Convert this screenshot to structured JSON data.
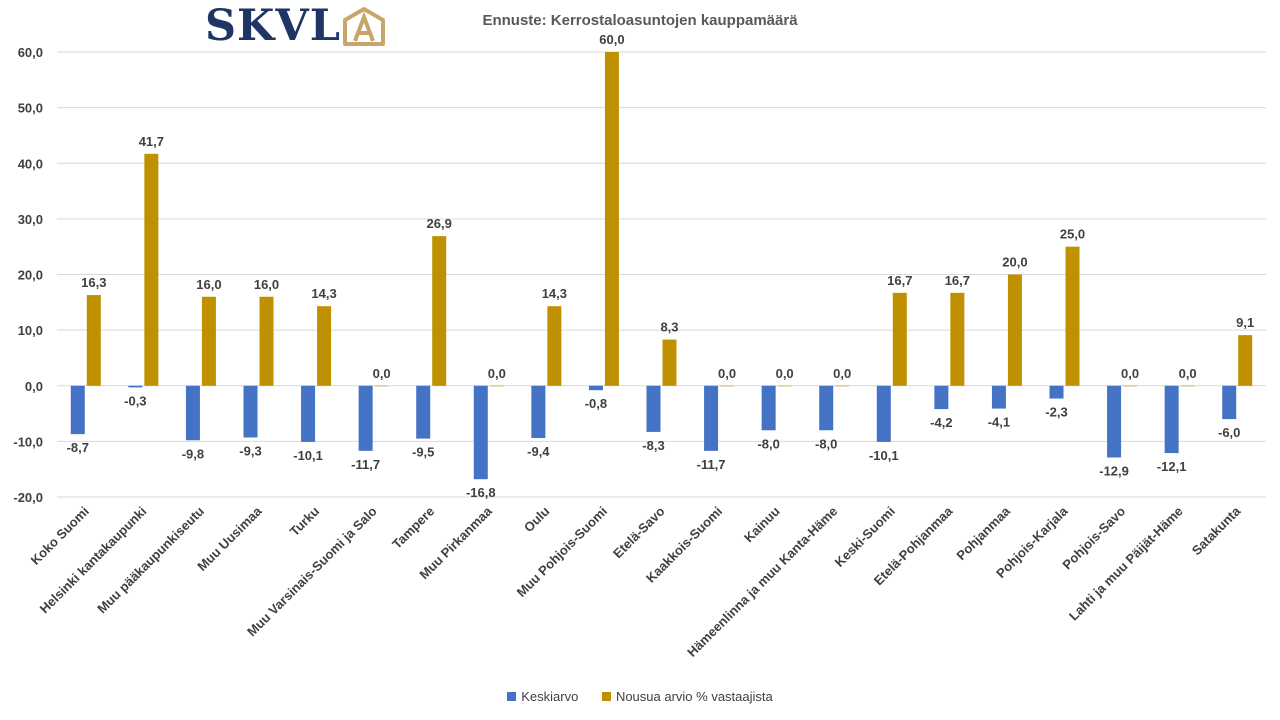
{
  "logo": {
    "text": "SKVL",
    "badge_letter": "A"
  },
  "colors": {
    "series1": "#4472c4",
    "series2": "#bf9000",
    "grid": "#d9d9d9",
    "text": "#404040",
    "logo": "#1f3566",
    "logo_accent": "#c9a46b"
  },
  "chart_data": {
    "type": "bar",
    "title": "Ennuste: Kerrostaloasuntojen kauppamäärä",
    "xlabel": "",
    "ylabel": "",
    "ylim": [
      -20,
      60
    ],
    "yticks": [
      "-20,0",
      "-10,0",
      "0,0",
      "10,0",
      "20,0",
      "30,0",
      "40,0",
      "50,0",
      "60,0"
    ],
    "grid": true,
    "legend_position": "bottom",
    "categories": [
      "Koko Suomi",
      "Helsinki kantakaupunki",
      "Muu pääkaupunkiseutu",
      "Muu Uusimaa",
      "Turku",
      "Muu Varsinais-Suomi ja Salo",
      "Tampere",
      "Muu Pirkanmaa",
      "Oulu",
      "Muu Pohjois-Suomi",
      "Etelä-Savo",
      "Kaakkois-Suomi",
      "Kainuu",
      "Hämeenlinna ja muu Kanta-Häme",
      "Keski-Suomi",
      "Etelä-Pohjanmaa",
      "Pohjanmaa",
      "Pohjois-Karjala",
      "Pohjois-Savo",
      "Lahti ja muu Päijät-Häme",
      "Satakunta"
    ],
    "series": [
      {
        "name": "Keskiarvo",
        "values": [
          -8.7,
          -0.3,
          -9.8,
          -9.3,
          -10.1,
          -11.7,
          -9.5,
          -16.8,
          -9.4,
          -0.8,
          -8.3,
          -11.7,
          -8.0,
          -8.0,
          -10.1,
          -4.2,
          -4.1,
          -2.3,
          -12.9,
          -12.1,
          -6.0
        ],
        "labels": [
          "-8,7",
          "-0,3",
          "-9,8",
          "-9,3",
          "-10,1",
          "-11,7",
          "-9,5",
          "-16,8",
          "-9,4",
          "-0,8",
          "-8,3",
          "-11,7",
          "-8,0",
          "-8,0",
          "-10,1",
          "-4,2",
          "-4,1",
          "-2,3",
          "-12,9",
          "-12,1",
          "-6,0"
        ]
      },
      {
        "name": "Nousua arvio % vastaajista",
        "values": [
          16.3,
          41.7,
          16.0,
          16.0,
          14.3,
          0.0,
          26.9,
          0.0,
          14.3,
          60.0,
          8.3,
          0.0,
          0.0,
          0.0,
          16.7,
          16.7,
          20.0,
          25.0,
          0.0,
          0.0,
          9.1
        ],
        "labels": [
          "16,3",
          "41,7",
          "16,0",
          "16,0",
          "14,3",
          "0,0",
          "26,9",
          "0,0",
          "14,3",
          "60,0",
          "8,3",
          "0,0",
          "0,0",
          "0,0",
          "16,7",
          "16,7",
          "20,0",
          "25,0",
          "0,0",
          "0,0",
          "9,1"
        ]
      }
    ]
  }
}
